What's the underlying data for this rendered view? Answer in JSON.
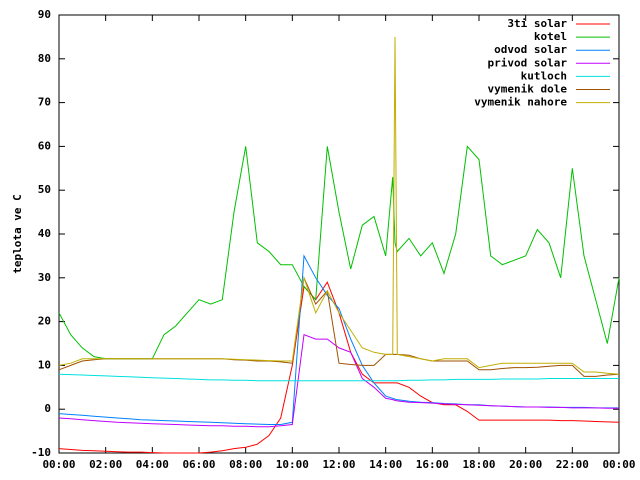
{
  "chart_data": {
    "type": "line",
    "ylabel": "teplota ve C",
    "x": [
      0,
      0.5,
      1,
      1.5,
      2,
      2.5,
      3,
      3.5,
      4,
      4.5,
      5,
      5.5,
      6,
      6.5,
      7,
      7.5,
      8,
      8.5,
      9,
      9.5,
      10,
      10.5,
      11,
      11.5,
      12,
      12.5,
      13,
      13.5,
      14,
      14.3,
      14.4,
      14.5,
      15,
      15.5,
      16,
      16.5,
      17,
      17.5,
      18,
      18.5,
      19,
      19.5,
      20,
      20.5,
      21,
      21.5,
      22,
      22.5,
      23,
      23.5,
      24
    ],
    "xlim": [
      0,
      24
    ],
    "xticks": [
      {
        "value": 0,
        "label": "00:00"
      },
      {
        "value": 2,
        "label": "02:00"
      },
      {
        "value": 4,
        "label": "04:00"
      },
      {
        "value": 6,
        "label": "06:00"
      },
      {
        "value": 8,
        "label": "08:00"
      },
      {
        "value": 10,
        "label": "10:00"
      },
      {
        "value": 12,
        "label": "12:00"
      },
      {
        "value": 14,
        "label": "14:00"
      },
      {
        "value": 16,
        "label": "16:00"
      },
      {
        "value": 18,
        "label": "18:00"
      },
      {
        "value": 20,
        "label": "20:00"
      },
      {
        "value": 22,
        "label": "22:00"
      },
      {
        "value": 24,
        "label": "00:00"
      }
    ],
    "ylim": [
      -10,
      90
    ],
    "yticks": [
      -10,
      0,
      10,
      20,
      30,
      40,
      50,
      60,
      70,
      80,
      90
    ],
    "legend": "top-right",
    "series": [
      {
        "name": "3ti solar",
        "color": "#ff0000",
        "values": [
          -9,
          -9.2,
          -9.4,
          -9.5,
          -9.6,
          -9.7,
          -9.8,
          -9.8,
          -9.9,
          -10,
          -10,
          -10,
          -10,
          -9.8,
          -9.5,
          -9,
          -8.7,
          -8,
          -6,
          -2,
          10,
          28,
          25,
          29,
          22,
          13,
          8,
          6,
          6,
          6,
          6,
          6,
          5,
          3,
          1.5,
          1,
          1,
          -0.5,
          -2.5,
          -2.5,
          -2.5,
          -2.5,
          -2.5,
          -2.5,
          -2.5,
          -2.6,
          -2.6,
          -2.7,
          -2.8,
          -2.9,
          -3
        ]
      },
      {
        "name": "kotel",
        "color": "#00c000",
        "values": [
          22,
          17,
          14,
          12,
          11.5,
          11.5,
          11.5,
          11.5,
          11.5,
          17,
          19,
          22,
          25,
          24,
          25,
          45,
          60,
          38,
          36,
          33,
          33,
          28,
          25,
          60,
          45,
          32,
          42,
          44,
          35,
          53,
          38,
          36,
          39,
          35,
          38,
          31,
          40,
          60,
          57,
          35,
          33,
          34,
          35,
          41,
          38,
          30,
          55,
          35,
          25,
          15,
          30
        ]
      },
      {
        "name": "odvod solar",
        "color": "#0080ff",
        "values": [
          -1,
          -1.2,
          -1.4,
          -1.6,
          -1.8,
          -2,
          -2.2,
          -2.4,
          -2.5,
          -2.6,
          -2.7,
          -2.8,
          -2.9,
          -3,
          -3.1,
          -3.2,
          -3.3,
          -3.4,
          -3.5,
          -3.5,
          -3,
          35,
          30,
          26,
          23,
          16,
          10,
          6,
          3,
          2.5,
          2.3,
          2.2,
          1.8,
          1.6,
          1.5,
          1.3,
          1.2,
          1,
          1,
          0.8,
          0.7,
          0.6,
          0.5,
          0.5,
          0.5,
          0.4,
          0.4,
          0.4,
          0.3,
          0.3,
          0.3
        ]
      },
      {
        "name": "privod solar",
        "color": "#c000ff",
        "values": [
          -2,
          -2.2,
          -2.4,
          -2.6,
          -2.8,
          -3,
          -3.1,
          -3.2,
          -3.3,
          -3.4,
          -3.5,
          -3.6,
          -3.7,
          -3.8,
          -3.8,
          -3.9,
          -3.9,
          -4,
          -4,
          -3.8,
          -3.5,
          17,
          16,
          16,
          14,
          13,
          7,
          5,
          2.5,
          2.2,
          2,
          1.9,
          1.6,
          1.5,
          1.4,
          1.2,
          1.1,
          1,
          0.9,
          0.8,
          0.7,
          0.6,
          0.5,
          0.5,
          0.4,
          0.4,
          0.3,
          0.3,
          0.3,
          0.2,
          0.2
        ]
      },
      {
        "name": "kutloch",
        "color": "#00e0e0",
        "values": [
          8,
          7.9,
          7.8,
          7.7,
          7.6,
          7.5,
          7.4,
          7.3,
          7.2,
          7.1,
          7,
          6.9,
          6.8,
          6.7,
          6.7,
          6.6,
          6.6,
          6.5,
          6.5,
          6.5,
          6.5,
          6.5,
          6.5,
          6.5,
          6.5,
          6.5,
          6.5,
          6.5,
          6.5,
          6.5,
          6.5,
          6.5,
          6.6,
          6.6,
          6.7,
          6.7,
          6.8,
          6.8,
          6.8,
          6.8,
          6.9,
          6.9,
          6.9,
          6.9,
          7,
          7,
          7,
          7,
          7,
          7,
          7
        ]
      },
      {
        "name": "vymenik dole",
        "color": "#a05000",
        "values": [
          9,
          10,
          11,
          11.3,
          11.5,
          11.5,
          11.5,
          11.5,
          11.5,
          11.5,
          11.5,
          11.5,
          11.5,
          11.5,
          11.5,
          11.3,
          11.2,
          11,
          11,
          10.8,
          10.5,
          30,
          24,
          27,
          10.5,
          10.2,
          10,
          10,
          12.5,
          12.5,
          12.5,
          12.5,
          12.3,
          11.5,
          11,
          11,
          11,
          11,
          9,
          9,
          9.3,
          9.5,
          9.5,
          9.6,
          9.8,
          10,
          10,
          7.5,
          7.5,
          7.8,
          8
        ]
      },
      {
        "name": "vymenik nahore",
        "color": "#c0b000",
        "values": [
          10,
          10.5,
          11.5,
          11.5,
          11.5,
          11.5,
          11.5,
          11.5,
          11.5,
          11.5,
          11.5,
          11.5,
          11.5,
          11.5,
          11.5,
          11.4,
          11.3,
          11.2,
          11.1,
          11,
          11,
          30,
          22,
          27,
          22,
          18,
          14,
          13,
          12.5,
          12.5,
          85,
          12.5,
          12,
          11.5,
          11,
          11.5,
          11.5,
          11.5,
          9.5,
          10,
          10.5,
          10.5,
          10.5,
          10.5,
          10.5,
          10.5,
          10.5,
          8.5,
          8.5,
          8.2,
          8
        ]
      }
    ]
  }
}
